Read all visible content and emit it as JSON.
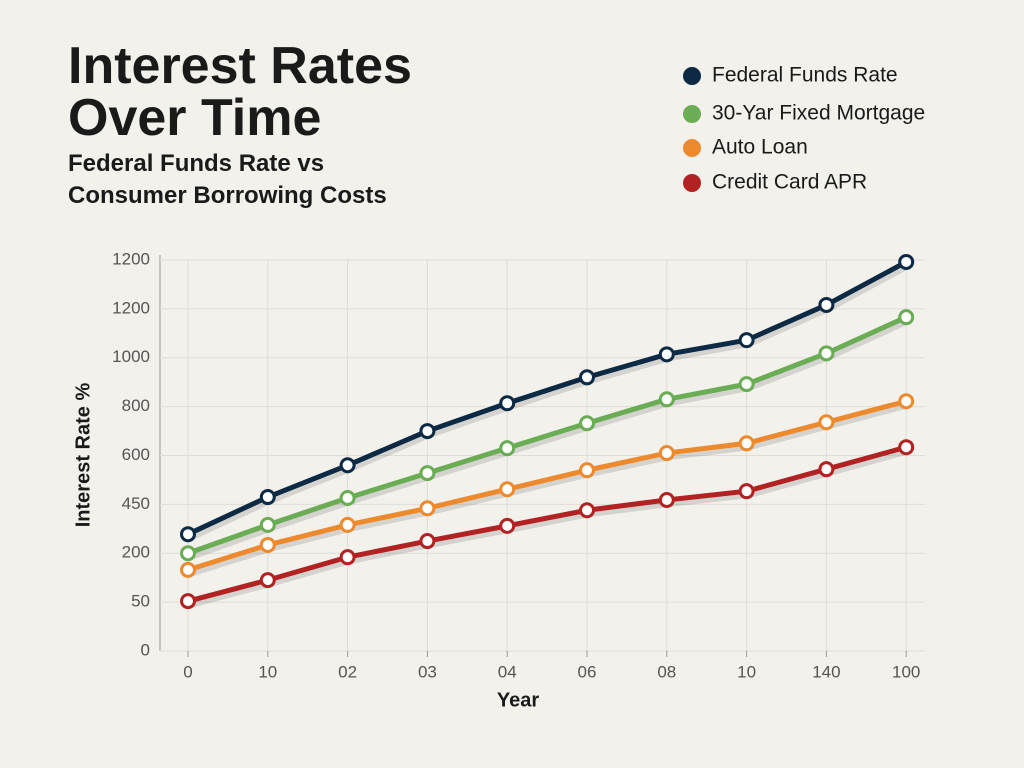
{
  "chart_data": {
    "type": "line",
    "title": "Interest Rates Over Time",
    "subtitle": "Federal Funds Rate vs Consumer Borrowing Costs",
    "x_label": "Year",
    "y_label": "Interest Rate %",
    "categories": [
      "0",
      "10",
      "02",
      "03",
      "04",
      "06",
      "08",
      "10",
      "140",
      "100"
    ],
    "ylim": [
      0,
      8
    ],
    "yticks": [
      0,
      {
        "value": 1,
        "label": "50"
      },
      {
        "value": 2,
        "label": "200"
      },
      {
        "value": 3,
        "label": "450"
      },
      {
        "value": 4,
        "label": "600"
      },
      {
        "value": 5,
        "label": "800"
      },
      {
        "value": 6,
        "label": "1000"
      },
      {
        "value": 7,
        "label": "1200"
      },
      {
        "value": 8,
        "label": "1200"
      }
    ],
    "grid": true,
    "legend": "top-right",
    "series": [
      {
        "name": "Federal Funds Rate",
        "color": "#0d2a45",
        "values": [
          2.39,
          3.15,
          3.8,
          4.5,
          5.07,
          5.6,
          6.07,
          6.36,
          7.08,
          7.96
        ]
      },
      {
        "name": "30-Yar Fixed Mortgage",
        "color": "#6aad55",
        "values": [
          2.0,
          2.58,
          3.13,
          3.64,
          4.15,
          4.66,
          5.15,
          5.46,
          6.09,
          6.83
        ]
      },
      {
        "name": "Auto Loan",
        "color": "#ee8a2e",
        "values": [
          1.66,
          2.17,
          2.58,
          2.92,
          3.31,
          3.7,
          4.05,
          4.25,
          4.68,
          5.11
        ]
      },
      {
        "name": "Credit Card APR",
        "color": "#b22222",
        "values": [
          1.02,
          1.45,
          1.92,
          2.25,
          2.56,
          2.88,
          3.09,
          3.27,
          3.72,
          4.17
        ]
      }
    ]
  }
}
